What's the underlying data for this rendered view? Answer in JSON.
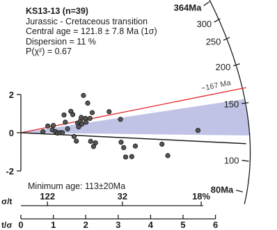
{
  "chart_data": {
    "type": "scatter",
    "plot_kind": "radial plot",
    "info_lines": [
      "KS13-13 (n=39)",
      "Jurassic - Cretaceous transition",
      "Central age = 121.8 ± 7.8 Ma (1σ)",
      "Dispersion = 11 %",
      "P(χ²) = 0.67"
    ],
    "ylabels": [
      "2",
      "0",
      "-2"
    ],
    "yticks": [
      2,
      0,
      -2
    ],
    "xlabel": "t/σ",
    "xticks": [
      0,
      1,
      2,
      3,
      4,
      5,
      6
    ],
    "xlim": [
      0,
      6
    ],
    "sigma_axis_label": "σ/t",
    "sigma_ticks": [
      {
        "label": "122",
        "t_over_sigma": 0.82
      },
      {
        "label": "32",
        "t_over_sigma": 3.13
      },
      {
        "label": "18%",
        "t_over_sigma": 5.56
      }
    ],
    "age_scale": [
      {
        "label": "364Ma",
        "value": 364
      },
      {
        "label": "300",
        "value": 300
      },
      {
        "label": "250",
        "value": 250
      },
      {
        "label": "200",
        "value": 200
      },
      {
        "label": "150",
        "value": 150
      },
      {
        "label": "100",
        "value": 100
      },
      {
        "label": "80Ma",
        "value": 80
      }
    ],
    "reference_line_label": "~167 Ma",
    "reference_age": 167,
    "central_age": 121.8,
    "min_age_text": "Minimum age: 113±20Ma",
    "minimum_age": 113,
    "colors": {
      "reference_line": "#e0262a",
      "wedge": "#b9bde3",
      "points": "#555555"
    },
    "points": [
      [
        0.68,
        0.05
      ],
      [
        0.83,
        0.35
      ],
      [
        0.97,
        0.15
      ],
      [
        1.0,
        0.38
      ],
      [
        1.07,
        0.05
      ],
      [
        1.13,
        -0.02
      ],
      [
        1.2,
        0.0
      ],
      [
        1.28,
        0.0
      ],
      [
        1.33,
        0.93
      ],
      [
        1.37,
        0.55
      ],
      [
        1.44,
        0.2
      ],
      [
        1.54,
        1.12
      ],
      [
        1.6,
        0.95
      ],
      [
        1.64,
        -0.2
      ],
      [
        1.71,
        -0.44
      ],
      [
        1.75,
        0.5
      ],
      [
        1.78,
        0.3
      ],
      [
        1.83,
        0.6
      ],
      [
        1.86,
        0.8
      ],
      [
        1.88,
        0.45
      ],
      [
        1.93,
        1.95
      ],
      [
        1.99,
        0.75
      ],
      [
        2.01,
        0.55
      ],
      [
        2.06,
        1.55
      ],
      [
        2.13,
        0.75
      ],
      [
        2.15,
        -0.45
      ],
      [
        2.2,
        1.05
      ],
      [
        2.24,
        -0.72
      ],
      [
        2.3,
        -0.53
      ],
      [
        2.72,
        1.1
      ],
      [
        3.07,
        0.7
      ],
      [
        3.09,
        -0.5
      ],
      [
        3.17,
        -0.78
      ],
      [
        3.23,
        -1.27
      ],
      [
        3.42,
        -1.25
      ],
      [
        3.53,
        -0.7
      ],
      [
        4.35,
        -0.6
      ],
      [
        4.53,
        -1.2
      ],
      [
        5.46,
        0.12
      ]
    ]
  }
}
